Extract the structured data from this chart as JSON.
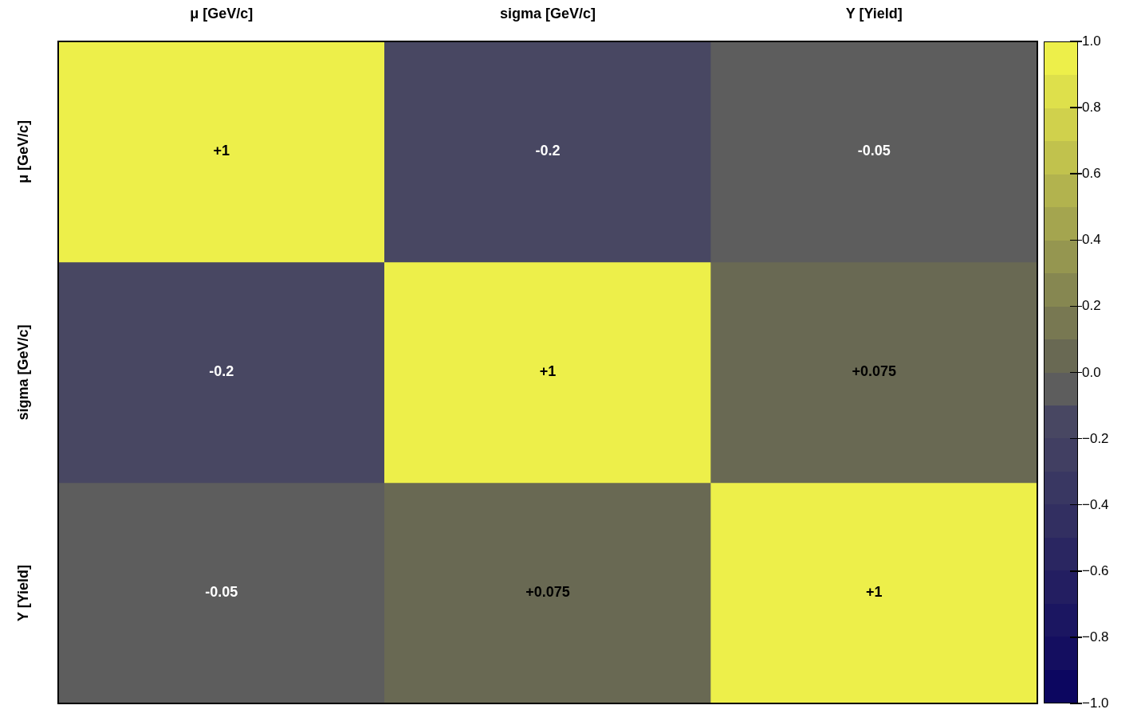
{
  "chart_data": {
    "type": "heatmap",
    "categories": [
      "μ [GeV/c]",
      "sigma [GeV/c]",
      "Y [Yield]"
    ],
    "y_categories": [
      "μ [GeV/c]",
      "sigma [GeV/c]",
      "Y [Yield]"
    ],
    "cells": [
      [
        1,
        -0.2,
        -0.05
      ],
      [
        -0.2,
        1,
        0.075
      ],
      [
        -0.05,
        0.075,
        1
      ]
    ],
    "cell_labels": [
      [
        "+1",
        "-0.2",
        "-0.05"
      ],
      [
        "-0.2",
        "+1",
        "+0.075"
      ],
      [
        "-0.05",
        "+0.075",
        "+1"
      ]
    ],
    "clim": [
      -1,
      1
    ],
    "cticks": [
      {
        "value": -1,
        "label": "−1.0"
      },
      {
        "value": -0.8,
        "label": "−0.8"
      },
      {
        "value": -0.6,
        "label": "−0.6"
      },
      {
        "value": -0.4,
        "label": "−0.4"
      },
      {
        "value": -0.2,
        "label": "−0.2"
      },
      {
        "value": 0,
        "label": "0.0"
      },
      {
        "value": 0.2,
        "label": "0.2"
      },
      {
        "value": 0.4,
        "label": "0.4"
      },
      {
        "value": 0.6,
        "label": "0.6"
      },
      {
        "value": 0.8,
        "label": "0.8"
      },
      {
        "value": 1,
        "label": "1.0"
      }
    ]
  }
}
